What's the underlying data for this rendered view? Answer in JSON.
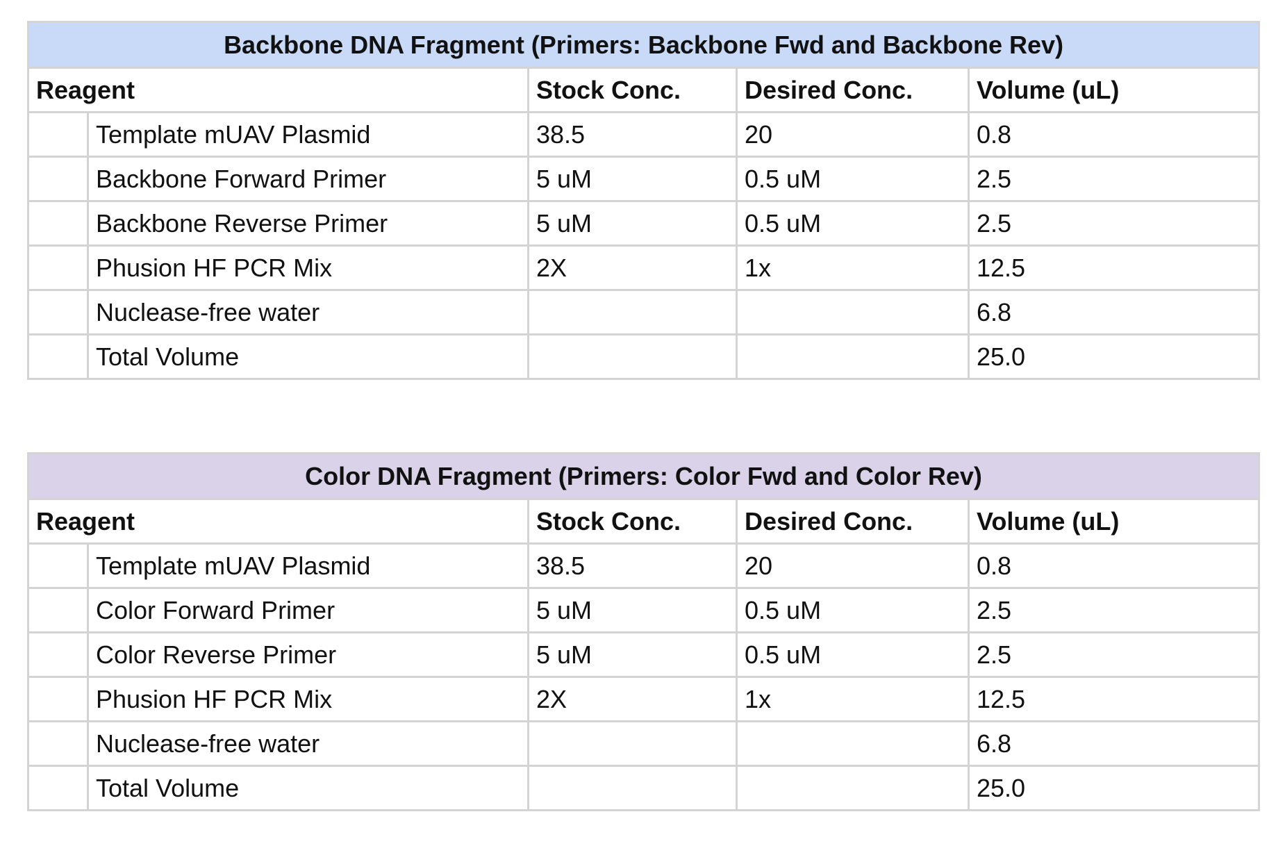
{
  "tables": [
    {
      "title": "Backbone DNA Fragment (Primers: Backbone Fwd and Backbone Rev)",
      "header_color": "#c9daf8",
      "columns": [
        "Reagent",
        "Stock Conc.",
        "Desired Conc.",
        "Volume (uL)"
      ],
      "rows": [
        {
          "reagent": "Template mUAV Plasmid",
          "stock": "38.5",
          "desired": "20",
          "volume": "0.8"
        },
        {
          "reagent": "Backbone Forward Primer",
          "stock": "5 uM",
          "desired": "0.5 uM",
          "volume": "2.5"
        },
        {
          "reagent": "Backbone Reverse Primer",
          "stock": "5 uM",
          "desired": "0.5 uM",
          "volume": "2.5"
        },
        {
          "reagent": "Phusion HF PCR Mix",
          "stock": "2X",
          "desired": "1x",
          "volume": "12.5"
        },
        {
          "reagent": "Nuclease-free water",
          "stock": "",
          "desired": "",
          "volume": "6.8"
        },
        {
          "reagent": "Total Volume",
          "stock": "",
          "desired": "",
          "volume": "25.0"
        }
      ]
    },
    {
      "title": "Color DNA Fragment (Primers: Color Fwd and Color Rev)",
      "header_color": "#d9d2e9",
      "columns": [
        "Reagent",
        "Stock Conc.",
        "Desired Conc.",
        "Volume (uL)"
      ],
      "rows": [
        {
          "reagent": "Template mUAV Plasmid",
          "stock": "38.5",
          "desired": "20",
          "volume": "0.8"
        },
        {
          "reagent": "Color Forward Primer",
          "stock": "5 uM",
          "desired": "0.5 uM",
          "volume": "2.5"
        },
        {
          "reagent": "Color Reverse Primer",
          "stock": "5 uM",
          "desired": "0.5 uM",
          "volume": "2.5"
        },
        {
          "reagent": "Phusion HF PCR Mix",
          "stock": "2X",
          "desired": "1x",
          "volume": "12.5"
        },
        {
          "reagent": "Nuclease-free water",
          "stock": "",
          "desired": "",
          "volume": "6.8"
        },
        {
          "reagent": "Total Volume",
          "stock": "",
          "desired": "",
          "volume": "25.0"
        }
      ]
    }
  ]
}
